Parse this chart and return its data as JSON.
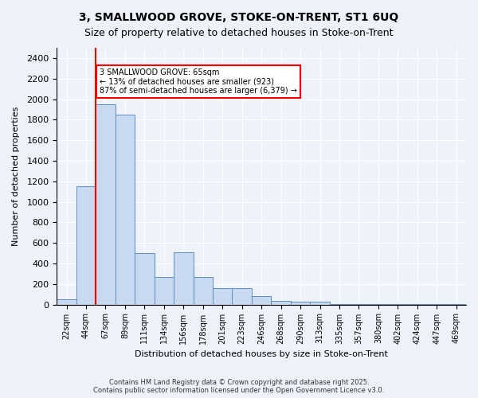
{
  "title_line1": "3, SMALLWOOD GROVE, STOKE-ON-TRENT, ST1 6UQ",
  "title_line2": "Size of property relative to detached houses in Stoke-on-Trent",
  "xlabel": "Distribution of detached houses by size in Stoke-on-Trent",
  "ylabel": "Number of detached properties",
  "categories": [
    "22sqm",
    "44sqm",
    "67sqm",
    "89sqm",
    "111sqm",
    "134sqm",
    "156sqm",
    "178sqm",
    "201sqm",
    "223sqm",
    "246sqm",
    "268sqm",
    "290sqm",
    "313sqm",
    "335sqm",
    "357sqm",
    "380sqm",
    "402sqm",
    "424sqm",
    "447sqm",
    "469sqm"
  ],
  "values": [
    50,
    1150,
    1950,
    1850,
    500,
    270,
    510,
    270,
    160,
    160,
    80,
    35,
    30,
    30,
    5,
    5,
    5,
    5,
    5,
    5,
    5
  ],
  "bar_color": "#c9d9f0",
  "bar_edge_color": "#5b8dc8",
  "redline_x": 1,
  "ylim": [
    0,
    2500
  ],
  "yticks": [
    0,
    200,
    400,
    600,
    800,
    1000,
    1200,
    1400,
    1600,
    1800,
    2000,
    2200,
    2400
  ],
  "annotation_text": "3 SMALLWOOD GROVE: 65sqm\n← 13% of detached houses are smaller (923)\n87% of semi-detached houses are larger (6,379) →",
  "annotation_box_color": "white",
  "annotation_box_edge": "red",
  "footer_line1": "Contains HM Land Registry data © Crown copyright and database right 2025.",
  "footer_line2": "Contains public sector information licensed under the Open Government Licence v3.0.",
  "background_color": "#eef2fa",
  "plot_bg_color": "#eef2fa",
  "grid_color": "white"
}
